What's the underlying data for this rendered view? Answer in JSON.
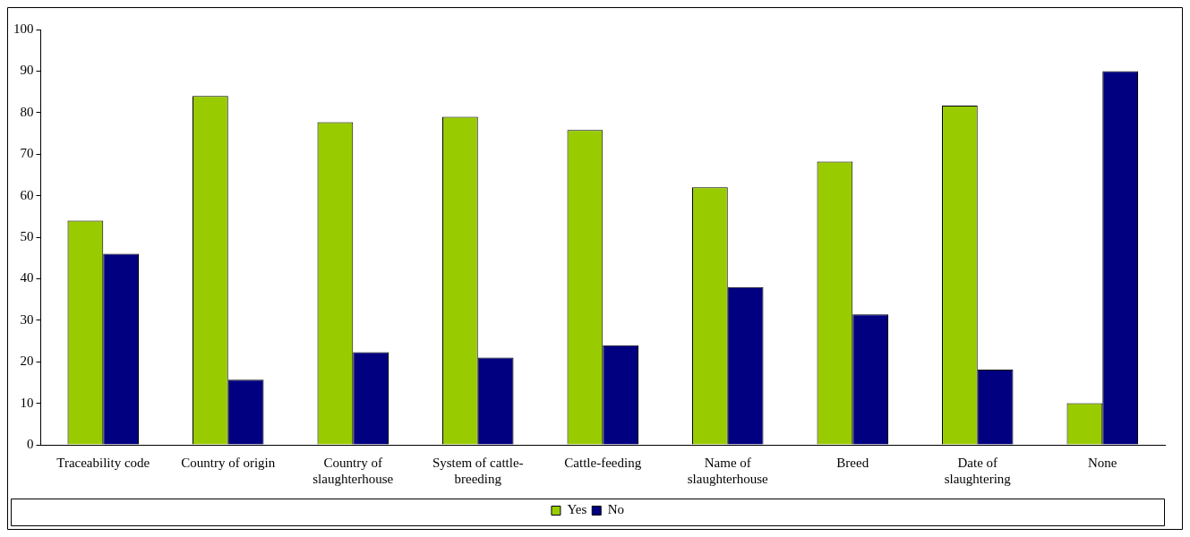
{
  "chart_data": {
    "type": "bar",
    "categories": [
      "Traceability code",
      "Country of origin",
      "Country of slaughterhouse",
      "System of cattle-breeding",
      "Cattle-feeding",
      "Name of slaughterhouse",
      "Breed",
      "Date of slaughtering",
      "None"
    ],
    "series": [
      {
        "name": "Yes",
        "color": "#99cc00",
        "values": [
          54,
          84,
          77.7,
          79,
          75.8,
          62,
          68.2,
          81.7,
          10
        ]
      },
      {
        "name": "No",
        "color": "#000080",
        "values": [
          46,
          15.7,
          22.3,
          21,
          24,
          38,
          31.4,
          18.1,
          90
        ]
      }
    ],
    "ylim": [
      0,
      100
    ],
    "yticks": [
      0,
      10,
      20,
      30,
      40,
      50,
      60,
      70,
      80,
      90,
      100
    ],
    "grid": false,
    "legend": "bottom"
  }
}
